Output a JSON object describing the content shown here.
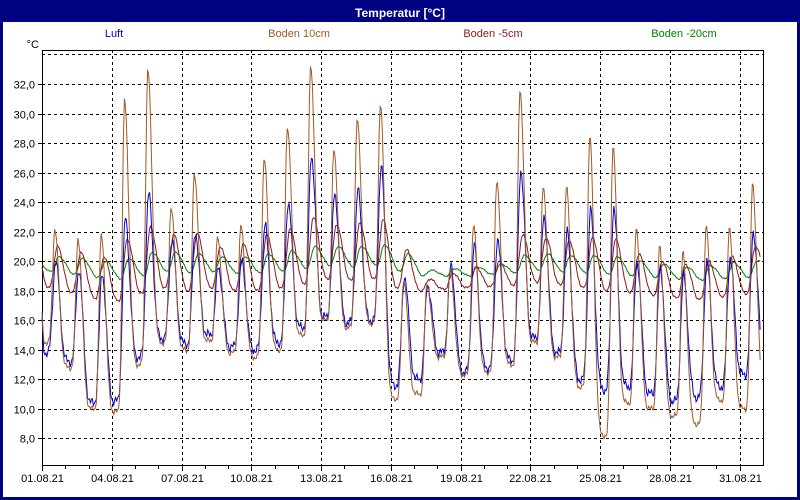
{
  "window": {
    "title": "Temperatur [°C]",
    "titlebar_color": "#000082",
    "frame_color": "#000082"
  },
  "chart_data": {
    "type": "line",
    "title": "Temperatur [°C]",
    "grid": "dashed",
    "legend_position": "top",
    "x_axis": {
      "days": 31,
      "label_every_days": 3,
      "minor_tick_every_days": 1,
      "labels": [
        "01.08.21",
        "04.08.21",
        "07.08.21",
        "10.08.21",
        "13.08.21",
        "16.08.21",
        "19.08.21",
        "22.08.21",
        "25.08.21",
        "28.08.21",
        "31.08.21"
      ]
    },
    "y_axis": {
      "unit": "°C",
      "min": 6.2,
      "max": 34.3,
      "tick_step": 2,
      "grid_top_value": 34,
      "tick_values": [
        8,
        10,
        12,
        14,
        16,
        18,
        20,
        22,
        24,
        26,
        28,
        30,
        32
      ],
      "tick_labels": [
        "8,0",
        "10,0",
        "12,0",
        "14,0",
        "16,0",
        "18,0",
        "20,0",
        "22,0",
        "24,0",
        "26,0",
        "28,0",
        "30,0",
        "32,0"
      ]
    },
    "series": [
      {
        "name": "Luft",
        "color": "#0000d8",
        "profile": {
          "min_hour": 4.5,
          "peak_hour": 14.0,
          "sharpness": 2.2,
          "noise": 0.2,
          "first_value": 19.4
        },
        "daily_min_max": [
          [
            13.8,
            20.0
          ],
          [
            13.2,
            19.5
          ],
          [
            10.4,
            19.2
          ],
          [
            10.5,
            22.9
          ],
          [
            13.5,
            24.6
          ],
          [
            14.8,
            21.5
          ],
          [
            14.4,
            22.0
          ],
          [
            15.0,
            19.6
          ],
          [
            14.2,
            20.0
          ],
          [
            14.0,
            22.5
          ],
          [
            14.5,
            24.0
          ],
          [
            15.5,
            27.2
          ],
          [
            16.2,
            24.5
          ],
          [
            15.8,
            24.8
          ],
          [
            16.0,
            26.5
          ],
          [
            11.6,
            19.0
          ],
          [
            12.0,
            18.4
          ],
          [
            13.8,
            19.7
          ],
          [
            12.5,
            21.0
          ],
          [
            12.8,
            21.5
          ],
          [
            13.3,
            26.2
          ],
          [
            14.8,
            23.0
          ],
          [
            13.8,
            22.0
          ],
          [
            12.0,
            23.5
          ],
          [
            11.3,
            23.7
          ],
          [
            11.5,
            20.0
          ],
          [
            11.0,
            19.5
          ],
          [
            10.5,
            19.0
          ],
          [
            10.8,
            20.0
          ],
          [
            11.5,
            20.3
          ],
          [
            12.3,
            22.0
          ]
        ]
      },
      {
        "name": "Boden 10cm",
        "color": "#a05a28",
        "profile": {
          "min_hour": 4.8,
          "peak_hour": 13.2,
          "sharpness": 2.6,
          "noise": 0.12,
          "first_value": 19.9
        },
        "daily_min_max": [
          [
            14.5,
            22.2
          ],
          [
            12.8,
            21.6
          ],
          [
            10.0,
            21.8
          ],
          [
            9.8,
            30.9
          ],
          [
            13.0,
            33.0
          ],
          [
            14.5,
            23.7
          ],
          [
            14.0,
            26.0
          ],
          [
            14.6,
            21.6
          ],
          [
            13.8,
            22.4
          ],
          [
            13.5,
            27.0
          ],
          [
            14.0,
            29.2
          ],
          [
            15.0,
            33.3
          ],
          [
            16.0,
            27.5
          ],
          [
            15.5,
            29.6
          ],
          [
            15.8,
            30.7
          ],
          [
            10.7,
            18.8
          ],
          [
            11.0,
            18.5
          ],
          [
            13.5,
            19.5
          ],
          [
            12.3,
            22.4
          ],
          [
            12.5,
            25.5
          ],
          [
            13.0,
            31.7
          ],
          [
            14.5,
            25.0
          ],
          [
            13.5,
            25.0
          ],
          [
            11.5,
            28.5
          ],
          [
            8.2,
            27.9
          ],
          [
            10.4,
            22.3
          ],
          [
            10.0,
            21.0
          ],
          [
            9.5,
            20.6
          ],
          [
            9.0,
            22.4
          ],
          [
            10.6,
            22.4
          ],
          [
            10.0,
            25.3
          ]
        ]
      },
      {
        "name": "Boden -5cm",
        "color": "#8a1a1a",
        "profile": {
          "min_hour": 7.0,
          "peak_hour": 16.0,
          "sharpness": 1.3,
          "noise": 0.05,
          "first_value": 20.0
        },
        "daily_min_max": [
          [
            18.2,
            21.0
          ],
          [
            17.9,
            20.6
          ],
          [
            17.5,
            20.3
          ],
          [
            17.3,
            21.5
          ],
          [
            17.8,
            22.3
          ],
          [
            18.2,
            21.8
          ],
          [
            18.0,
            21.9
          ],
          [
            18.2,
            21.0
          ],
          [
            18.0,
            21.2
          ],
          [
            18.0,
            21.8
          ],
          [
            18.2,
            22.2
          ],
          [
            18.5,
            23.0
          ],
          [
            18.8,
            22.5
          ],
          [
            18.7,
            22.6
          ],
          [
            18.8,
            22.8
          ],
          [
            18.2,
            20.8
          ],
          [
            18.0,
            18.8
          ],
          [
            18.1,
            19.2
          ],
          [
            18.2,
            19.6
          ],
          [
            18.3,
            20.0
          ],
          [
            18.4,
            21.8
          ],
          [
            18.6,
            21.6
          ],
          [
            18.4,
            21.4
          ],
          [
            18.2,
            21.6
          ],
          [
            18.0,
            21.5
          ],
          [
            17.9,
            20.5
          ],
          [
            17.7,
            20.0
          ],
          [
            17.5,
            19.8
          ],
          [
            17.4,
            20.0
          ],
          [
            17.6,
            20.3
          ],
          [
            17.8,
            21.0
          ]
        ]
      },
      {
        "name": "Boden -20cm",
        "color": "#008000",
        "profile": {
          "min_hour": 9.5,
          "peak_hour": 17.5,
          "sharpness": 1.0,
          "noise": 0.03,
          "first_value": 19.8
        },
        "daily_min_max": [
          [
            19.3,
            20.3
          ],
          [
            19.1,
            20.2
          ],
          [
            18.9,
            20.0
          ],
          [
            18.8,
            20.2
          ],
          [
            19.0,
            20.6
          ],
          [
            19.3,
            20.6
          ],
          [
            19.2,
            20.5
          ],
          [
            19.3,
            20.3
          ],
          [
            19.2,
            20.3
          ],
          [
            19.2,
            20.5
          ],
          [
            19.3,
            20.7
          ],
          [
            19.5,
            21.0
          ],
          [
            19.7,
            21.0
          ],
          [
            19.6,
            21.0
          ],
          [
            19.7,
            21.1
          ],
          [
            19.3,
            20.5
          ],
          [
            19.0,
            19.4
          ],
          [
            19.0,
            19.5
          ],
          [
            19.0,
            19.6
          ],
          [
            19.1,
            19.8
          ],
          [
            19.2,
            20.4
          ],
          [
            19.4,
            20.5
          ],
          [
            19.3,
            20.4
          ],
          [
            19.2,
            20.4
          ],
          [
            19.1,
            20.3
          ],
          [
            19.0,
            20.0
          ],
          [
            18.9,
            19.8
          ],
          [
            18.8,
            19.6
          ],
          [
            18.7,
            19.7
          ],
          [
            18.8,
            19.9
          ],
          [
            18.9,
            20.0
          ]
        ]
      }
    ]
  }
}
